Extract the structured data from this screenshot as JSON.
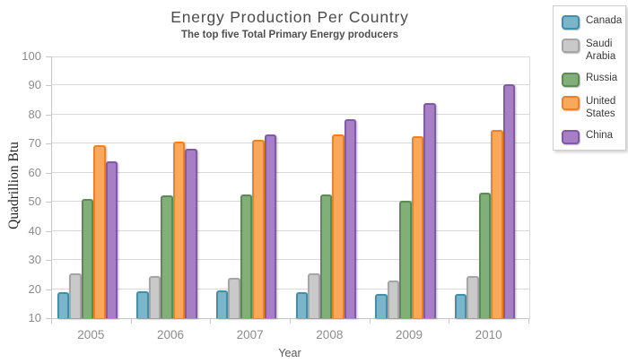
{
  "chart_data": {
    "type": "bar",
    "title": "Energy Production Per Country",
    "subtitle": "The top five Total Primary Energy producers",
    "xlabel": "Year",
    "ylabel": "Quadrillion Btu",
    "categories": [
      "2005",
      "2006",
      "2007",
      "2008",
      "2009",
      "2010"
    ],
    "series": [
      {
        "name": "Canada",
        "fill": "#7AB5C9",
        "stroke": "#4190AB",
        "values": [
          19.0,
          19.3,
          19.6,
          19.1,
          18.2,
          18.3
        ]
      },
      {
        "name": "Saudi Arabia",
        "fill": "#C9C9C9",
        "stroke": "#A6A6A6",
        "values": [
          25.4,
          24.6,
          23.8,
          25.3,
          22.9,
          24.6
        ]
      },
      {
        "name": "Russia",
        "fill": "#82AE79",
        "stroke": "#5C8C52",
        "values": [
          51.1,
          52.2,
          52.7,
          52.5,
          50.4,
          53.3
        ]
      },
      {
        "name": "United States",
        "fill": "#FAA85C",
        "stroke": "#EF8122",
        "values": [
          69.4,
          70.8,
          71.3,
          73.2,
          72.6,
          74.8
        ]
      },
      {
        "name": "China",
        "fill": "#A77FC4",
        "stroke": "#8159A4",
        "values": [
          63.9,
          68.2,
          73.3,
          78.3,
          84.1,
          90.5
        ]
      }
    ],
    "y_ticks": [
      10,
      20,
      30,
      40,
      50,
      60,
      70,
      80,
      90,
      100
    ],
    "ylim": [
      10,
      100
    ],
    "grid": true,
    "legend_position": "top-right"
  },
  "colors": {
    "gridline": "#D9D9D9",
    "axis_line": "#C6C6C6",
    "tick_label": "#8C8C8C",
    "title_text": "#4B4B4B",
    "legend_border": "#CDCDCD"
  }
}
